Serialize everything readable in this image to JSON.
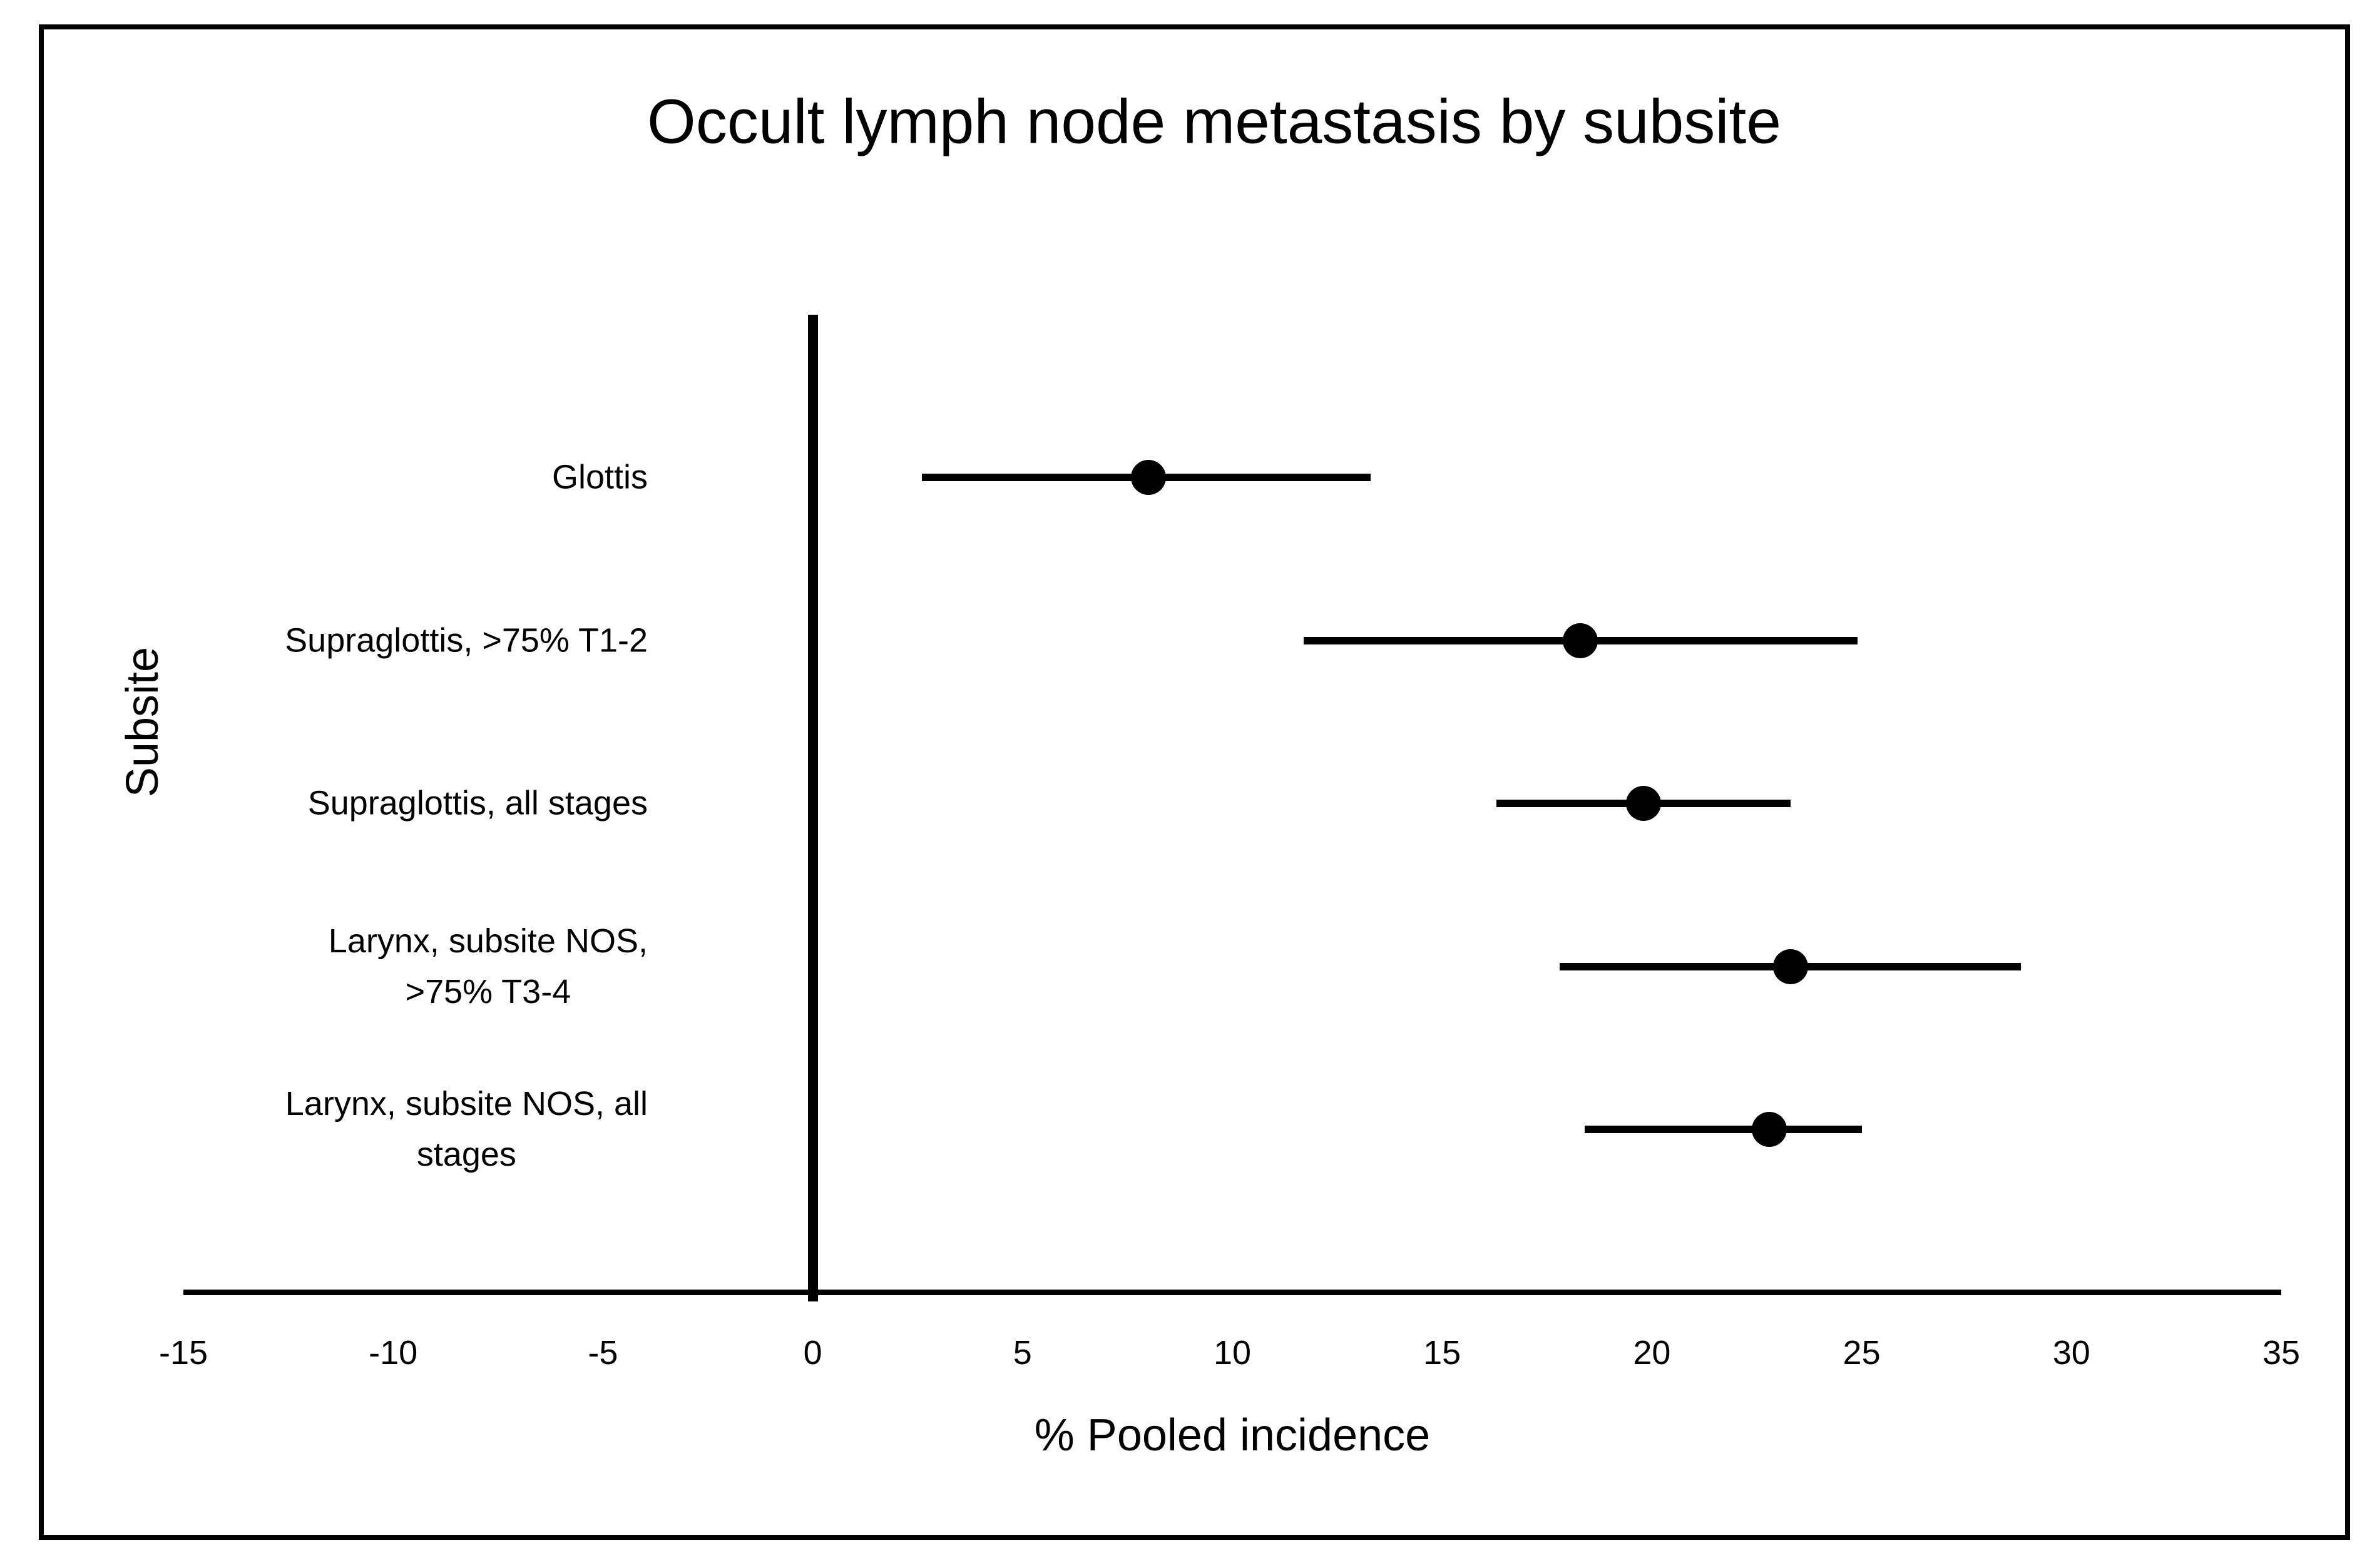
{
  "chart_data": {
    "type": "scatter",
    "variant": "forest-plot-dot-with-ci",
    "title": "Occult lymph node metastasis by subsite",
    "xlabel": "% Pooled incidence",
    "ylabel": "Subsite",
    "xlim": [
      -15,
      35
    ],
    "xticks": [
      -15,
      -10,
      -5,
      0,
      5,
      10,
      15,
      20,
      25,
      30,
      35
    ],
    "grid": false,
    "legend": "none",
    "categories": [
      "Glottis",
      "Supraglottis, >75% T1-2",
      "Supraglottis, all stages",
      "Larynx, subsite NOS,\n>75% T3-4",
      "Larynx, subsite NOS, all\nstages"
    ],
    "points": [
      {
        "label": "Glottis",
        "value": 8.0,
        "ci_low": 2.6,
        "ci_high": 13.3
      },
      {
        "label": "Supraglottis, >75% T1-2",
        "value": 18.3,
        "ci_low": 11.7,
        "ci_high": 24.9
      },
      {
        "label": "Supraglottis, all stages",
        "value": 19.8,
        "ci_low": 16.3,
        "ci_high": 23.3
      },
      {
        "label": "Larynx, subsite NOS,\n>75% T3-4",
        "value": 23.3,
        "ci_low": 17.8,
        "ci_high": 28.8
      },
      {
        "label": "Larynx, subsite NOS, all\nstages",
        "value": 22.8,
        "ci_low": 18.4,
        "ci_high": 25.0
      }
    ]
  },
  "colors": {
    "marker": "#000000",
    "ci_line": "#000000",
    "axis": "#000000",
    "text": "#000000",
    "background": "#ffffff",
    "border": "#000000"
  }
}
